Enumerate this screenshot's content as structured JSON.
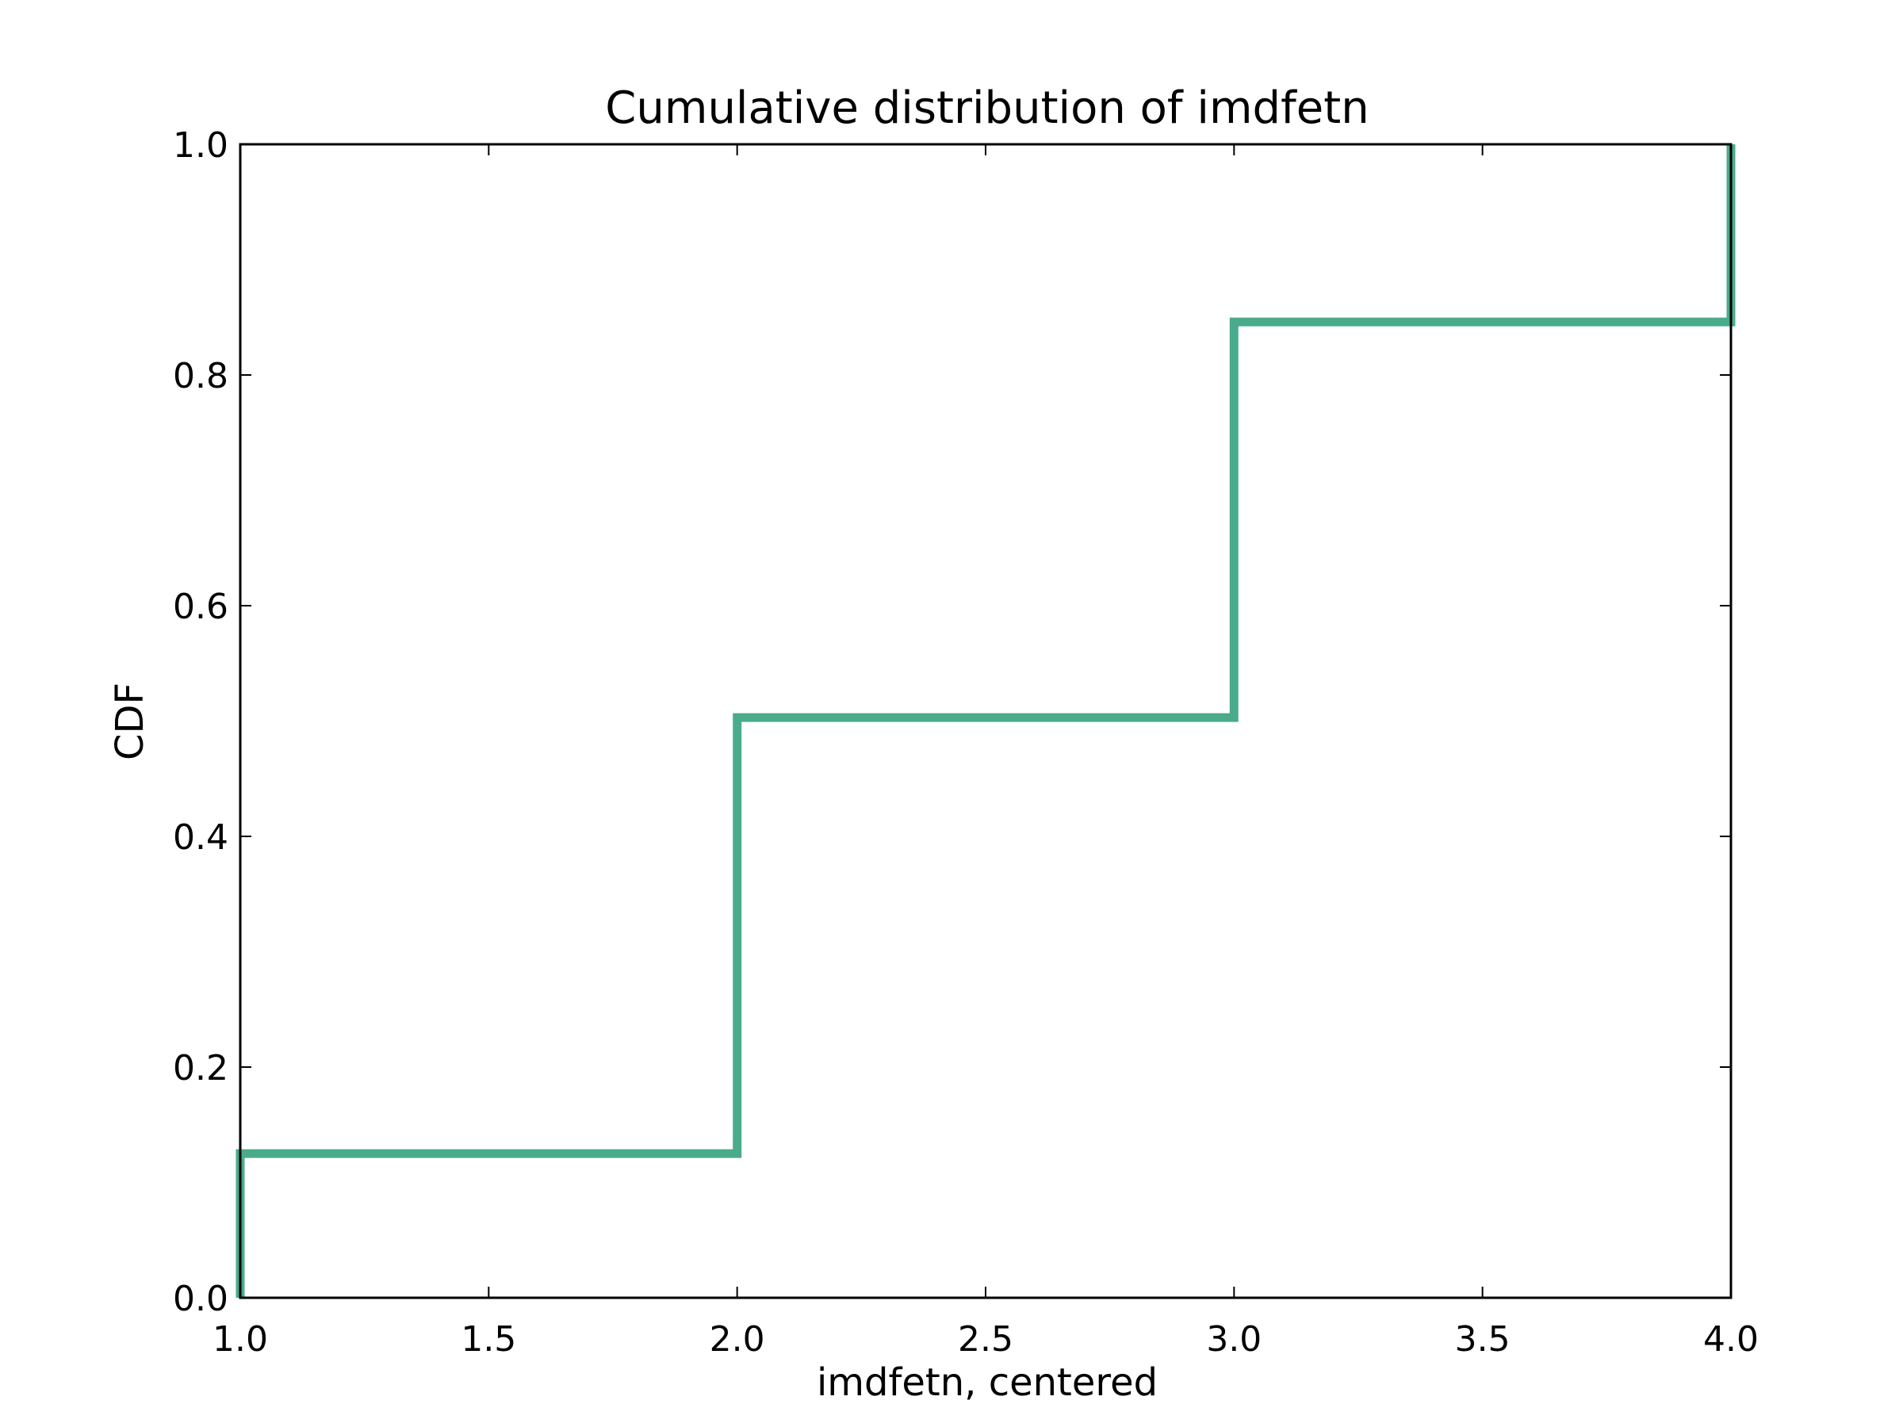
{
  "chart_data": {
    "type": "line",
    "step": true,
    "title": "Cumulative distribution of imdfetn",
    "xlabel": "imdfetn, centered",
    "ylabel": "CDF",
    "xlim": [
      1.0,
      4.0
    ],
    "ylim": [
      0.0,
      1.0
    ],
    "xticks": [
      "1.0",
      "1.5",
      "2.0",
      "2.5",
      "3.0",
      "3.5",
      "4.0"
    ],
    "yticks": [
      "0.0",
      "0.2",
      "0.4",
      "0.6",
      "0.8",
      "1.0"
    ],
    "grid": false,
    "line_color": "#4aab8c",
    "series": [
      {
        "x": [
          1.0,
          1.0,
          2.0,
          2.0,
          3.0,
          3.0,
          4.0,
          4.0
        ],
        "y": [
          0.0,
          0.125,
          0.125,
          0.503,
          0.503,
          0.846,
          0.846,
          1.0
        ]
      }
    ]
  }
}
